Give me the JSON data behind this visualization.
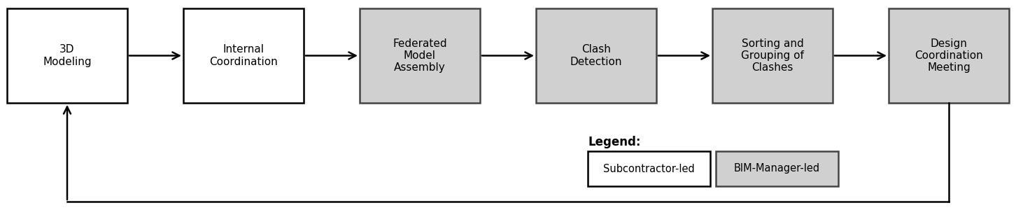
{
  "boxes": [
    {
      "label": "3D\nModeling",
      "facecolor": "white",
      "edgecolor": "black"
    },
    {
      "label": "Internal\nCoordination",
      "facecolor": "white",
      "edgecolor": "black"
    },
    {
      "label": "Federated\nModel\nAssembly",
      "facecolor": "#d0d0d0",
      "edgecolor": "#444444"
    },
    {
      "label": "Clash\nDetection",
      "facecolor": "#d0d0d0",
      "edgecolor": "#444444"
    },
    {
      "label": "Sorting and\nGrouping of\nClashes",
      "facecolor": "#d0d0d0",
      "edgecolor": "#444444"
    },
    {
      "label": "Design\nCoordination\nMeeting",
      "facecolor": "#d0d0d0",
      "edgecolor": "#444444"
    }
  ],
  "legend_items": [
    {
      "label": "Subcontractor-led",
      "facecolor": "white",
      "edgecolor": "black"
    },
    {
      "label": "BIM-Manager-led",
      "facecolor": "#d0d0d0",
      "edgecolor": "#444444"
    }
  ],
  "legend_title": "Legend:",
  "fig_width": 14.52,
  "fig_height": 3.0,
  "background_color": "white",
  "font_size": 11,
  "legend_font_size": 10.5,
  "legend_title_font_size": 12
}
